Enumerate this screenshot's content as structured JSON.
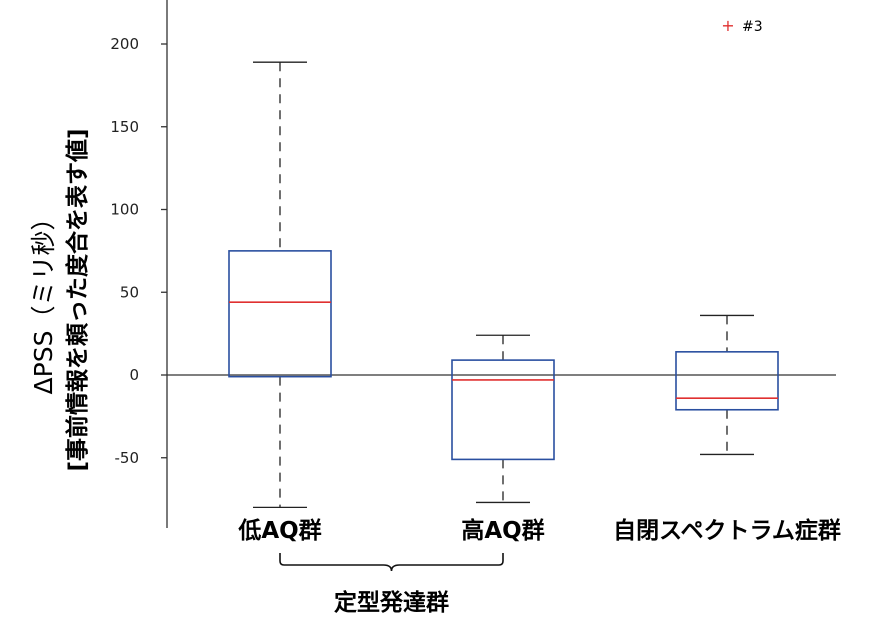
{
  "chart_data": {
    "type": "box",
    "ylabel": "ΔPSS（ミリ秒）",
    "ylabel_sub": "[事前情報を頼った度合を表す値]",
    "yticks": [
      -50,
      0,
      50,
      100,
      150,
      200
    ],
    "ylim": [
      -92,
      225
    ],
    "categories": [
      "低AQ群",
      "高AQ群",
      "自閉スペクトラム症群"
    ],
    "boxes": [
      {
        "category": "低AQ群",
        "whisker_low": -80,
        "q1": -1,
        "median": 44,
        "q3": 75,
        "whisker_high": 189
      },
      {
        "category": "高AQ群",
        "whisker_low": -77,
        "q1": -51,
        "median": -3,
        "q3": 9,
        "whisker_high": 24
      },
      {
        "category": "自閉スペクトラム症群",
        "whisker_low": -48,
        "q1": -21,
        "median": -14,
        "q3": 14,
        "whisker_high": 36
      }
    ],
    "outlier_legend": {
      "marker": "+",
      "label": "#3"
    },
    "group_bracket": {
      "label": "定型発達群",
      "spans": [
        "低AQ群",
        "高AQ群"
      ]
    },
    "reference_line": 0,
    "colors": {
      "box": "#2a4fa0",
      "median": "#e03030",
      "whisker": "#222222",
      "outlier": "#e03030"
    }
  }
}
